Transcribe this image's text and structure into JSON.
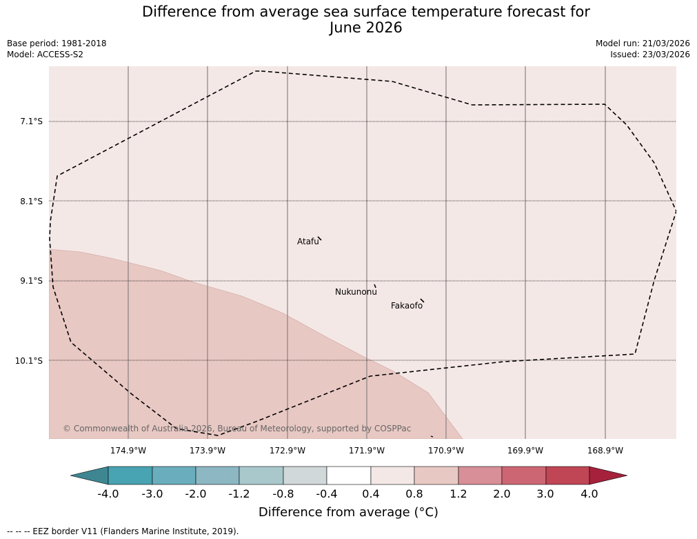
{
  "title_line1": "Difference from average sea surface temperature forecast for",
  "title_line2": "June 2026",
  "meta": {
    "base_period": "Base period: 1981-2018",
    "model": "Model: ACCESS-S2",
    "model_run": "Model run: 21/03/2026",
    "issued": "Issued: 23/03/2026"
  },
  "latitudes": [
    "7.1°S",
    "8.1°S",
    "9.1°S",
    "10.1°S"
  ],
  "longitudes": [
    "174.9°W",
    "173.9°W",
    "172.9°W",
    "171.9°W",
    "170.9°W",
    "169.9°W",
    "168.9°W"
  ],
  "places": {
    "atafu": "Atafu",
    "nukunonu": "Nukunonu",
    "fakaofo": "Fakaofo"
  },
  "copyright": "© Commonwealth of Australia 2026, Bureau of Meteorology, supported by COSPPac",
  "colorbar": {
    "labels": [
      "-4.0",
      "-3.0",
      "-2.0",
      "-1.2",
      "-0.8",
      "-0.4",
      "0.4",
      "0.8",
      "1.2",
      "2.0",
      "3.0",
      "4.0"
    ],
    "colors": [
      "#3e8792",
      "#48a3b2",
      "#6aaebd",
      "#8cb7c3",
      "#a9c8cc",
      "#d0d8da",
      "#ffffff",
      "#f4e8e6",
      "#e8c8c3",
      "#d88f98",
      "#cd6673",
      "#c04555",
      "#a6213c"
    ],
    "title": "Difference from average (°C)"
  },
  "footer": "-- -- -- EEZ border V11 (Flanders Marine Institute, 2019)."
}
